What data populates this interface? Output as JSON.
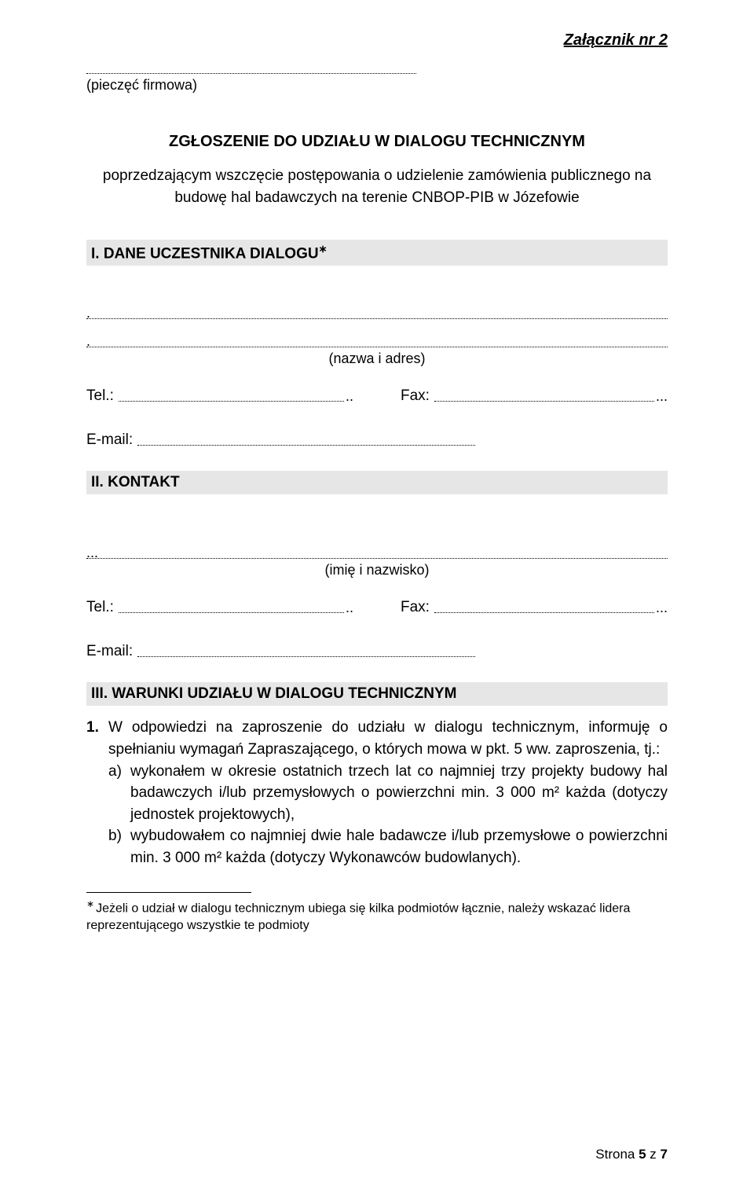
{
  "annex": "Załącznik nr 2",
  "stamp": {
    "label": "(pieczęć firmowa)"
  },
  "title": "ZGŁOSZENIE DO UDZIAŁU W DIALOGU TECHNICZNYM",
  "subtitle": "poprzedzającym wszczęcie postępowania o udzielenie zamówienia publicznego na budowę hal badawczych na terenie CNBOP-PIB w Józefowie",
  "section1": {
    "heading": "I. DANE UCZESTNIKA DIALOGU",
    "heading_sup": "∗"
  },
  "name_addr_caption": "(nazwa i adres)",
  "tel_label": "Tel.:",
  "fax_label": "Fax:",
  "email_label": "E-mail:",
  "section2": {
    "heading": "II. KONTAKT"
  },
  "name_caption": "(imię i nazwisko)",
  "section3": {
    "heading": "III. WARUNKI UDZIAŁU W DIALOGU TECHNICZNYM"
  },
  "item1": {
    "num": "1.",
    "text": "W odpowiedzi na zaproszenie do udziału w dialogu technicznym, informuję o spełnianiu wymagań Zapraszającego, o których mowa w pkt. 5 ww. zaproszenia, tj.:",
    "a": {
      "lit": "a)",
      "text": "wykonałem w okresie ostatnich trzech lat co najmniej trzy projekty budowy hal badawczych i/lub przemysłowych o powierzchni min. 3 000 m² każda (dotyczy jednostek projektowych),"
    },
    "b": {
      "lit": "b)",
      "text": "wybudowałem co najmniej dwie hale badawcze i/lub przemysłowe o powierzchni min. 3 000 m²  każda (dotyczy Wykonawców budowlanych)."
    }
  },
  "footnote": {
    "mark": "∗",
    "text": "Jeżeli o udział w dialogu technicznym ubiega się kilka podmiotów łącznie, należy wskazać lidera reprezentującego wszystkie te podmioty"
  },
  "pager": {
    "prefix": "Strona ",
    "cur": "5",
    "mid": " z ",
    "total": "7"
  }
}
